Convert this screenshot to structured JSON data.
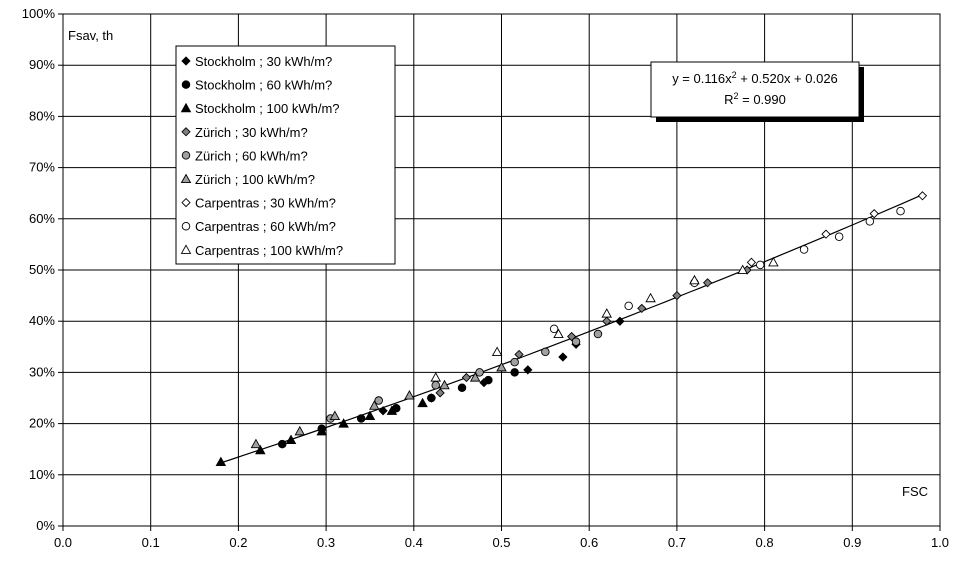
{
  "chart_data": {
    "type": "scatter",
    "title": "",
    "xlabel": "FSC",
    "ylabel": "Fsav, th",
    "xlim": [
      0,
      1
    ],
    "ylim": [
      0,
      1
    ],
    "x_ticks": [
      "0.0",
      "0.1",
      "0.2",
      "0.3",
      "0.4",
      "0.5",
      "0.6",
      "0.7",
      "0.8",
      "0.9",
      "1.0"
    ],
    "y_ticks": [
      "0%",
      "10%",
      "20%",
      "30%",
      "40%",
      "50%",
      "60%",
      "70%",
      "80%",
      "90%",
      "100%"
    ],
    "grid": true,
    "legend_position": "top-left",
    "series": [
      {
        "name": "Stockholm ; 30 kWh/m?",
        "marker": "diamond",
        "fill": "#000000",
        "points": [
          [
            0.365,
            0.225
          ],
          [
            0.42,
            0.25
          ],
          [
            0.48,
            0.28
          ],
          [
            0.53,
            0.305
          ],
          [
            0.57,
            0.33
          ],
          [
            0.635,
            0.4
          ],
          [
            0.585,
            0.355
          ]
        ]
      },
      {
        "name": "Stockholm ; 60 kWh/m?",
        "marker": "circle",
        "fill": "#000000",
        "points": [
          [
            0.25,
            0.16
          ],
          [
            0.295,
            0.19
          ],
          [
            0.34,
            0.21
          ],
          [
            0.38,
            0.23
          ],
          [
            0.42,
            0.25
          ],
          [
            0.455,
            0.27
          ],
          [
            0.485,
            0.285
          ],
          [
            0.515,
            0.3
          ]
        ]
      },
      {
        "name": "Stockholm ; 100 kWh/m?",
        "marker": "triangle",
        "fill": "#000000",
        "points": [
          [
            0.18,
            0.125
          ],
          [
            0.225,
            0.148
          ],
          [
            0.26,
            0.168
          ],
          [
            0.295,
            0.185
          ],
          [
            0.32,
            0.2
          ],
          [
            0.35,
            0.215
          ],
          [
            0.375,
            0.225
          ],
          [
            0.41,
            0.24
          ]
        ]
      },
      {
        "name": "Zürich ; 30 kWh/m?",
        "marker": "diamond",
        "fill": "#808080",
        "points": [
          [
            0.43,
            0.26
          ],
          [
            0.46,
            0.29
          ],
          [
            0.52,
            0.335
          ],
          [
            0.58,
            0.37
          ],
          [
            0.62,
            0.4
          ],
          [
            0.66,
            0.425
          ],
          [
            0.7,
            0.45
          ],
          [
            0.735,
            0.475
          ],
          [
            0.78,
            0.5
          ]
        ]
      },
      {
        "name": "Zürich ; 60 kWh/m?",
        "marker": "circle",
        "fill": "#a0a0a0",
        "points": [
          [
            0.305,
            0.21
          ],
          [
            0.36,
            0.245
          ],
          [
            0.425,
            0.275
          ],
          [
            0.475,
            0.3
          ],
          [
            0.515,
            0.32
          ],
          [
            0.55,
            0.34
          ],
          [
            0.585,
            0.36
          ],
          [
            0.61,
            0.375
          ]
        ]
      },
      {
        "name": "Zürich ; 100 kWh/m?",
        "marker": "triangle",
        "fill": "#a0a0a0",
        "points": [
          [
            0.22,
            0.16
          ],
          [
            0.27,
            0.185
          ],
          [
            0.31,
            0.215
          ],
          [
            0.355,
            0.235
          ],
          [
            0.395,
            0.255
          ],
          [
            0.435,
            0.275
          ],
          [
            0.47,
            0.29
          ],
          [
            0.5,
            0.31
          ]
        ]
      },
      {
        "name": "Carpentras ; 30 kWh/m?",
        "marker": "diamond",
        "fill": "#ffffff",
        "points": [
          [
            0.72,
            0.475
          ],
          [
            0.785,
            0.515
          ],
          [
            0.87,
            0.57
          ],
          [
            0.925,
            0.61
          ],
          [
            0.98,
            0.645
          ]
        ]
      },
      {
        "name": "Carpentras ; 60 kWh/m?",
        "marker": "circle",
        "fill": "#ffffff",
        "points": [
          [
            0.56,
            0.385
          ],
          [
            0.645,
            0.43
          ],
          [
            0.72,
            0.475
          ],
          [
            0.795,
            0.51
          ],
          [
            0.845,
            0.54
          ],
          [
            0.885,
            0.565
          ],
          [
            0.92,
            0.595
          ],
          [
            0.955,
            0.615
          ]
        ]
      },
      {
        "name": "Carpentras ; 100 kWh/m?",
        "marker": "triangle",
        "fill": "#ffffff",
        "points": [
          [
            0.425,
            0.29
          ],
          [
            0.495,
            0.34
          ],
          [
            0.565,
            0.375
          ],
          [
            0.62,
            0.415
          ],
          [
            0.67,
            0.445
          ],
          [
            0.72,
            0.48
          ],
          [
            0.775,
            0.5
          ],
          [
            0.81,
            0.515
          ]
        ]
      }
    ],
    "fit": {
      "a": 0.116,
      "b": 0.52,
      "c": 0.026,
      "x_from": 0.18,
      "x_to": 0.98
    },
    "equation_line1": "y = 0.116x",
    "equation_sup1": "2",
    "equation_line1_rest": " + 0.520x + 0.026",
    "equation_line2": "R",
    "equation_sup2": "2",
    "equation_line2_rest": " = 0.990"
  }
}
